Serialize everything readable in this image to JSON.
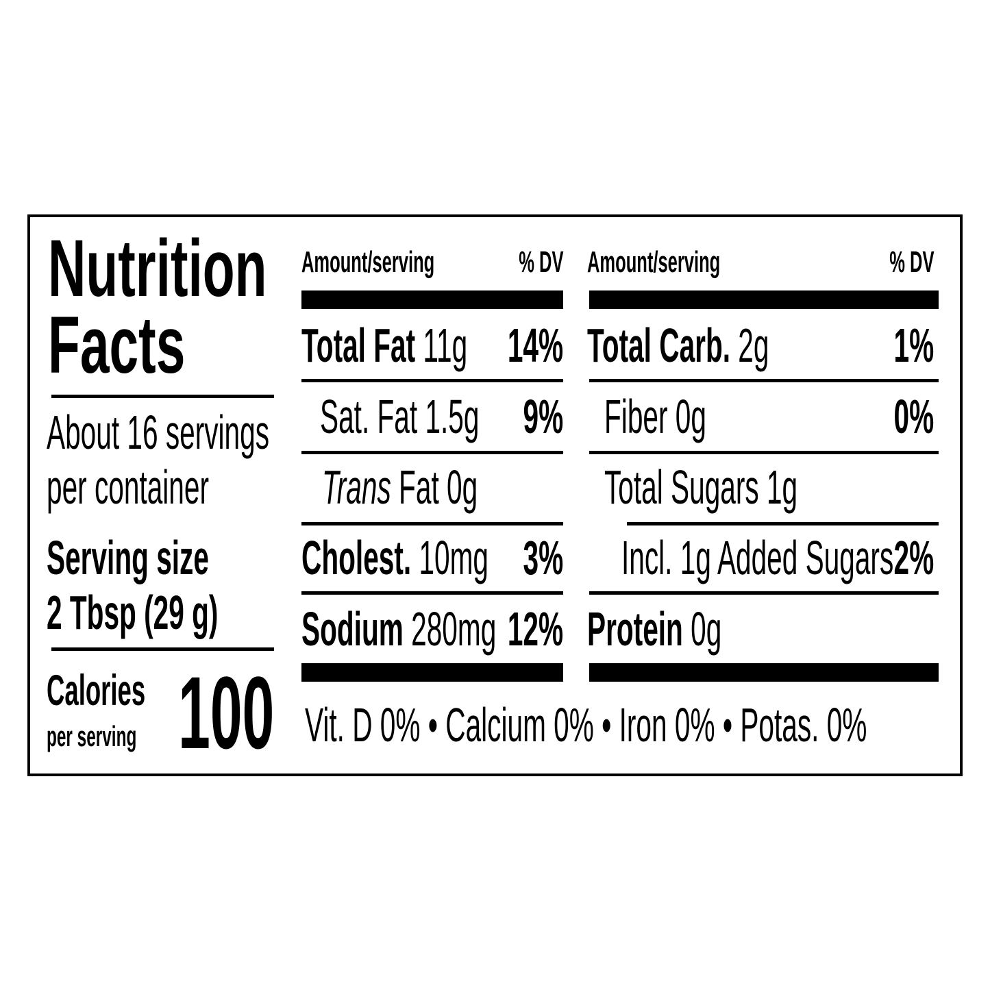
{
  "title": {
    "line1": "Nutrition",
    "line2": "Facts"
  },
  "servings": {
    "line1": "About 16 servings",
    "line2": "per container"
  },
  "serving_size": {
    "label": "Serving size",
    "value": "2 Tbsp (29 g)"
  },
  "calories": {
    "label": "Calories",
    "sublabel": "per serving",
    "value": "100"
  },
  "columns": [
    {
      "header": {
        "amount": "Amount/serving",
        "dv": "% DV"
      },
      "rows": [
        {
          "name": "Total Fat",
          "amount": "11g",
          "dv": "14%"
        },
        {
          "name": "Sat. Fat",
          "amount": "1.5g",
          "dv": "9%"
        },
        {
          "name": "Trans",
          "amount": "Fat 0g",
          "dv": ""
        },
        {
          "name": "Cholest.",
          "amount": "10mg",
          "dv": "3%"
        },
        {
          "name": "Sodium",
          "amount": "280mg",
          "dv": "12%"
        }
      ]
    },
    {
      "header": {
        "amount": "Amount/serving",
        "dv": "% DV"
      },
      "rows": [
        {
          "name": "Total Carb.",
          "amount": "2g",
          "dv": "1%"
        },
        {
          "name": "Fiber",
          "amount": "0g",
          "dv": "0%"
        },
        {
          "name": "Total Sugars",
          "amount": "1g",
          "dv": ""
        },
        {
          "name": "Incl. 1g Added Sugars",
          "amount": "",
          "dv": "2%"
        },
        {
          "name": "Protein",
          "amount": "0g",
          "dv": ""
        }
      ]
    }
  ],
  "footer": "Vit. D 0% • Calcium 0% • Iron 0% • Potas. 0%"
}
